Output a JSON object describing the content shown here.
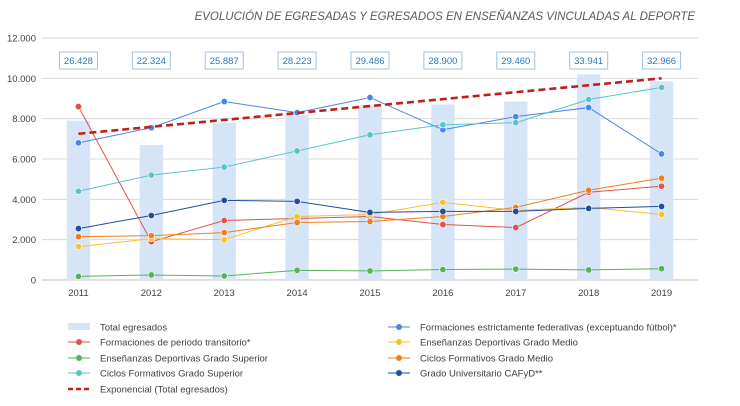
{
  "chart_data": {
    "type": "bar+line",
    "title": "EVOLUCIÓN DE EGRESADAS Y EGRESADOS EN ENSEÑANZAS VINCULADAS AL DEPORTE",
    "xlabel": "",
    "ylabel": "",
    "categories": [
      "2011",
      "2012",
      "2013",
      "2014",
      "2015",
      "2016",
      "2017",
      "2018",
      "2019"
    ],
    "ylim": [
      0,
      12000
    ],
    "yticks": [
      "0",
      "2.000",
      "4.000",
      "6.000",
      "8.000",
      "10.000",
      "12.000"
    ],
    "ytick_values": [
      0,
      2000,
      4000,
      6000,
      8000,
      10000,
      12000
    ],
    "grid": true,
    "bars": {
      "name": "Total egresados",
      "color": "#d6e4f7",
      "values": [
        7900,
        6700,
        7800,
        8200,
        8650,
        8700,
        8850,
        10200,
        9850
      ],
      "labels": [
        "26.428",
        "22.324",
        "25.887",
        "28.223",
        "29.486",
        "28.900",
        "29.460",
        "33.941",
        "32.966"
      ]
    },
    "series": [
      {
        "name": "Formaciones estrictamente federativas (exceptuando fútbol)*",
        "color": "#4a86e8",
        "values": [
          6800,
          7550,
          8850,
          8300,
          9050,
          7450,
          8100,
          8550,
          6250
        ]
      },
      {
        "name": "Formaciones de periodo transitorio*",
        "color": "#e0524a",
        "values": [
          8600,
          1900,
          2950,
          3050,
          3150,
          2750,
          2600,
          4350,
          4650
        ]
      },
      {
        "name": "Enseñanzas Deportivas Grado Medio",
        "color": "#f4c232",
        "values": [
          1650,
          2050,
          2000,
          3150,
          3250,
          3850,
          3450,
          3600,
          3250
        ]
      },
      {
        "name": "Enseñanzas Deportivas Grado Superior",
        "color": "#57b35a",
        "values": [
          180,
          250,
          200,
          480,
          450,
          520,
          540,
          500,
          560
        ]
      },
      {
        "name": "Ciclos Formativos Grado Medio",
        "color": "#f07e21",
        "values": [
          2150,
          2200,
          2350,
          2850,
          2900,
          3150,
          3600,
          4450,
          5050
        ]
      },
      {
        "name": "Ciclos Formativos Grado Superior",
        "color": "#56c4c9",
        "values": [
          4400,
          5200,
          5600,
          6400,
          7200,
          7700,
          7800,
          8950,
          9550
        ]
      },
      {
        "name": "Grado Universitario CAFyD**",
        "color": "#1f4e9c",
        "values": [
          2550,
          3200,
          3950,
          3900,
          3350,
          3400,
          3400,
          3550,
          3650
        ]
      }
    ],
    "trendline": {
      "name": "Exponencial (Total egresados)",
      "color": "#c0201a",
      "values": [
        7250,
        10000
      ]
    },
    "legend_position": "bottom"
  }
}
